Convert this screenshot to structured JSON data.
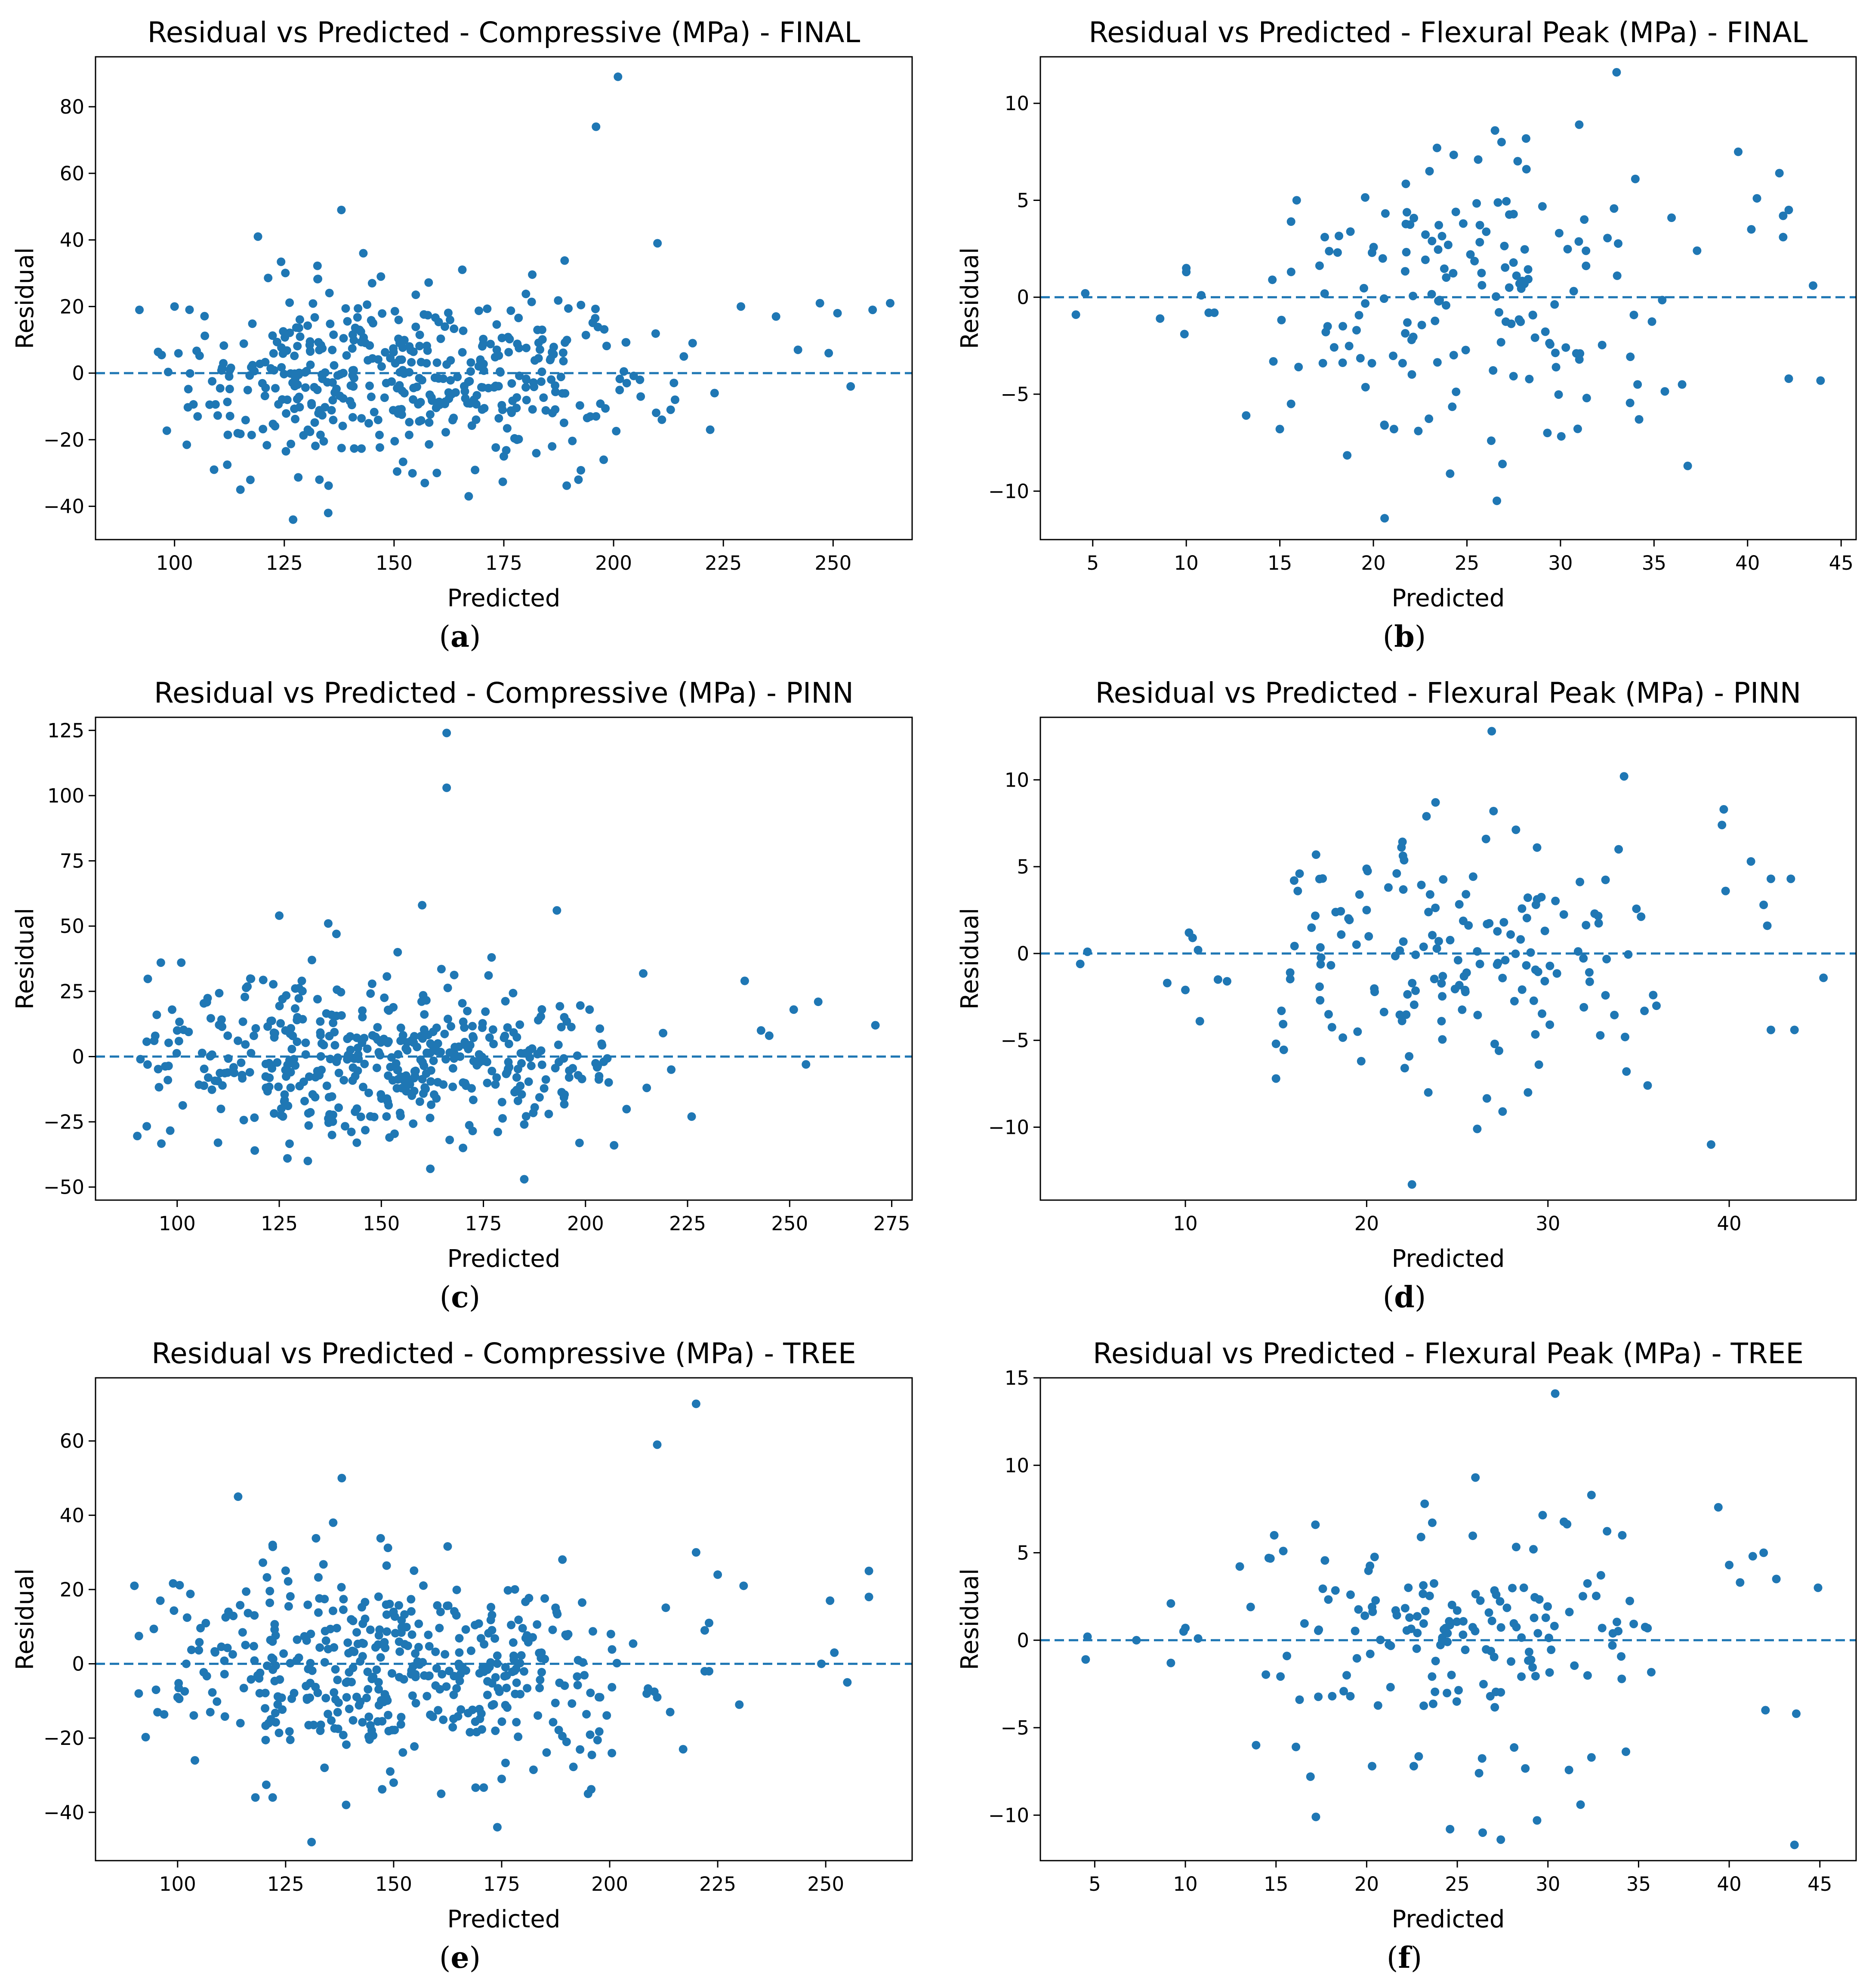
{
  "figure": {
    "panel_labels": [
      "a",
      "b",
      "c",
      "d",
      "e",
      "f"
    ],
    "colors": {
      "point": "#1f77b4",
      "zero_line": "#1f77b4",
      "axis": "#000000"
    }
  },
  "chart_data": [
    {
      "id": "a",
      "type": "scatter",
      "title": "Residual vs Predicted - Compressive (MPa) - FINAL",
      "xlabel": "Predicted",
      "ylabel": "Residual",
      "xlim": [
        82,
        268
      ],
      "ylim": [
        -50,
        95
      ],
      "xticks": [
        100,
        125,
        150,
        175,
        200,
        225,
        250
      ],
      "yticks": [
        -40,
        -20,
        0,
        20,
        40,
        60,
        80
      ],
      "reference_line": {
        "y": 0,
        "style": "dashed"
      },
      "seed": 11,
      "n_points": 470,
      "x_range_bulk": [
        92,
        215
      ],
      "x_center": 150,
      "x_spread": 30,
      "residual_spread": 13,
      "points": [
        [
          201,
          89
        ],
        [
          196,
          74
        ],
        [
          138,
          49
        ],
        [
          119,
          41
        ],
        [
          210,
          39
        ],
        [
          143,
          36
        ],
        [
          145,
          27
        ],
        [
          100,
          20
        ],
        [
          92,
          19
        ],
        [
          147,
          29
        ],
        [
          229,
          20
        ],
        [
          247,
          21
        ],
        [
          263,
          21
        ],
        [
          237,
          17
        ],
        [
          251,
          18
        ],
        [
          259,
          19
        ],
        [
          242,
          7
        ],
        [
          249,
          6
        ],
        [
          254,
          -4
        ],
        [
          223,
          -6
        ],
        [
          222,
          -17
        ],
        [
          214,
          -8
        ],
        [
          211,
          -14
        ],
        [
          213,
          -11
        ],
        [
          216,
          5
        ],
        [
          218,
          9
        ],
        [
          127,
          -44
        ],
        [
          135,
          -42
        ],
        [
          115,
          -35
        ],
        [
          109,
          -29
        ],
        [
          133,
          -32
        ],
        [
          167,
          -37
        ],
        [
          192,
          -32
        ],
        [
          157,
          -33
        ],
        [
          175,
          -25
        ],
        [
          186,
          -22
        ],
        [
          178,
          -20
        ],
        [
          196,
          -13
        ],
        [
          206,
          -2
        ],
        [
          203,
          -3
        ]
      ]
    },
    {
      "id": "b",
      "type": "scatter",
      "title": "Residual vs Predicted - Flexural Peak (MPa) - FINAL",
      "xlabel": "Predicted",
      "ylabel": "Residual",
      "xlim": [
        2.2,
        45.8
      ],
      "ylim": [
        -12.5,
        12.4
      ],
      "xticks": [
        5,
        10,
        15,
        20,
        25,
        30,
        35,
        40,
        45
      ],
      "yticks": [
        -10,
        -5,
        0,
        5,
        10
      ],
      "reference_line": {
        "y": 0,
        "style": "dashed"
      },
      "seed": 23,
      "n_points": 195,
      "x_range_bulk": [
        13,
        36
      ],
      "x_center": 25,
      "x_spread": 6,
      "residual_spread": 3.2,
      "points": [
        [
          4.1,
          -0.9
        ],
        [
          4.6,
          0.2
        ],
        [
          8.6,
          -1.1
        ],
        [
          9.9,
          -1.9
        ],
        [
          10.0,
          1.5
        ],
        [
          10.0,
          1.3
        ],
        [
          10.8,
          0.1
        ],
        [
          11.2,
          -0.8
        ],
        [
          11.5,
          -0.8
        ],
        [
          13.2,
          -6.1
        ],
        [
          33.0,
          11.6
        ],
        [
          31.0,
          8.9
        ],
        [
          26.5,
          8.6
        ],
        [
          23.4,
          7.7
        ],
        [
          25.6,
          7.1
        ],
        [
          23.0,
          6.5
        ],
        [
          39.5,
          7.5
        ],
        [
          41.7,
          6.4
        ],
        [
          34.0,
          6.1
        ],
        [
          37.3,
          2.4
        ],
        [
          40.5,
          5.1
        ],
        [
          42.2,
          4.5
        ],
        [
          41.9,
          4.2
        ],
        [
          41.9,
          3.1
        ],
        [
          40.2,
          3.5
        ],
        [
          43.5,
          0.6
        ],
        [
          43.9,
          -4.3
        ],
        [
          42.2,
          -4.2
        ],
        [
          36.8,
          -8.7
        ],
        [
          36.5,
          -4.5
        ],
        [
          20.6,
          -11.4
        ],
        [
          26.6,
          -10.5
        ],
        [
          24.1,
          -9.1
        ],
        [
          26.9,
          -8.6
        ],
        [
          26.3,
          -7.4
        ],
        [
          21.1,
          -6.8
        ],
        [
          22.4,
          -6.9
        ],
        [
          29.3,
          -7.0
        ],
        [
          31.4,
          -5.2
        ],
        [
          34.2,
          -6.3
        ],
        [
          15.0,
          -6.8
        ],
        [
          15.6,
          -5.5
        ],
        [
          16.0,
          -3.6
        ],
        [
          17.3,
          -3.4
        ],
        [
          15.9,
          5.0
        ],
        [
          15.6,
          3.9
        ],
        [
          17.4,
          3.1
        ],
        [
          20.5,
          2.0
        ],
        [
          19.1,
          -1.7
        ],
        [
          14.6,
          0.9
        ]
      ]
    },
    {
      "id": "c",
      "type": "scatter",
      "title": "Residual vs Predicted - Compressive (MPa) - PINN",
      "xlabel": "Predicted",
      "ylabel": "Residual",
      "xlim": [
        80,
        280
      ],
      "ylim": [
        -55,
        130
      ],
      "xticks": [
        100,
        125,
        150,
        175,
        200,
        225,
        250,
        275
      ],
      "yticks": [
        -50,
        -25,
        0,
        25,
        50,
        75,
        100,
        125
      ],
      "reference_line": {
        "y": 0,
        "style": "dashed"
      },
      "seed": 37,
      "n_points": 470,
      "x_range_bulk": [
        90,
        215
      ],
      "x_center": 150,
      "x_spread": 30,
      "residual_spread": 14,
      "points": [
        [
          166,
          124
        ],
        [
          166,
          103
        ],
        [
          160,
          58
        ],
        [
          193,
          56
        ],
        [
          125,
          54
        ],
        [
          137,
          51
        ],
        [
          139,
          47
        ],
        [
          154,
          40
        ],
        [
          177,
          38
        ],
        [
          133,
          37
        ],
        [
          96,
          36
        ],
        [
          101,
          36
        ],
        [
          239,
          29
        ],
        [
          271,
          12
        ],
        [
          257,
          21
        ],
        [
          251,
          18
        ],
        [
          245,
          8
        ],
        [
          243,
          10
        ],
        [
          254,
          -3
        ],
        [
          226,
          -23
        ],
        [
          221,
          -5
        ],
        [
          215,
          -12
        ],
        [
          219,
          9
        ],
        [
          207,
          -34
        ],
        [
          185,
          -47
        ],
        [
          162,
          -43
        ],
        [
          127,
          -39
        ],
        [
          132,
          -40
        ],
        [
          119,
          -36
        ],
        [
          110,
          -33
        ],
        [
          144,
          -33
        ],
        [
          170,
          -35
        ],
        [
          152,
          -31
        ],
        [
          191,
          -22
        ],
        [
          185,
          -26
        ],
        [
          196,
          -8
        ],
        [
          201,
          18
        ],
        [
          95,
          16
        ],
        [
          91,
          -1
        ],
        [
          100,
          10
        ]
      ]
    },
    {
      "id": "d",
      "type": "scatter",
      "title": "Residual vs Predicted - Flexural Peak (MPa) - PINN",
      "xlabel": "Predicted",
      "ylabel": "Residual",
      "xlim": [
        2.0,
        47.0
      ],
      "ylim": [
        -14.2,
        13.6
      ],
      "xticks": [
        10,
        20,
        30,
        40
      ],
      "yticks": [
        -10,
        -5,
        0,
        5,
        10
      ],
      "reference_line": {
        "y": 0,
        "style": "dashed"
      },
      "seed": 51,
      "n_points": 190,
      "x_range_bulk": [
        14,
        36
      ],
      "x_center": 25,
      "x_spread": 6,
      "residual_spread": 3.3,
      "points": [
        [
          4.2,
          -0.6
        ],
        [
          4.6,
          0.1
        ],
        [
          9.0,
          -1.7
        ],
        [
          10.0,
          -2.1
        ],
        [
          10.2,
          1.2
        ],
        [
          10.4,
          0.9
        ],
        [
          10.7,
          0.2
        ],
        [
          10.8,
          -3.9
        ],
        [
          11.8,
          -1.5
        ],
        [
          12.3,
          -1.6
        ],
        [
          26.9,
          12.8
        ],
        [
          34.2,
          10.2
        ],
        [
          23.8,
          8.7
        ],
        [
          23.3,
          7.9
        ],
        [
          27.0,
          8.2
        ],
        [
          39.7,
          8.3
        ],
        [
          39.6,
          7.4
        ],
        [
          41.2,
          5.3
        ],
        [
          33.9,
          6.0
        ],
        [
          29.4,
          6.1
        ],
        [
          42.3,
          4.3
        ],
        [
          41.9,
          2.8
        ],
        [
          43.4,
          4.3
        ],
        [
          42.1,
          1.6
        ],
        [
          39.8,
          3.6
        ],
        [
          45.2,
          -1.4
        ],
        [
          43.6,
          -4.4
        ],
        [
          42.3,
          -4.4
        ],
        [
          39.0,
          -11.0
        ],
        [
          35.5,
          -7.6
        ],
        [
          22.5,
          -13.3
        ],
        [
          26.1,
          -10.1
        ],
        [
          27.5,
          -9.1
        ],
        [
          23.4,
          -8.0
        ],
        [
          28.9,
          -8.0
        ],
        [
          29.5,
          -6.4
        ],
        [
          22.1,
          -6.6
        ],
        [
          19.7,
          -6.2
        ],
        [
          27.3,
          -5.6
        ],
        [
          15.0,
          -7.2
        ],
        [
          15.0,
          -5.2
        ],
        [
          15.3,
          -3.3
        ],
        [
          16.3,
          4.6
        ],
        [
          16.0,
          4.2
        ],
        [
          16.2,
          3.6
        ],
        [
          17.9,
          -3.5
        ],
        [
          20.0,
          2.5
        ],
        [
          21.2,
          3.8
        ],
        [
          23.5,
          3.4
        ],
        [
          19.5,
          -4.5
        ]
      ]
    },
    {
      "id": "e",
      "type": "scatter",
      "title": "Residual vs Predicted - Compressive (MPa) - TREE",
      "xlabel": "Predicted",
      "ylabel": "Residual",
      "xlim": [
        81,
        270
      ],
      "ylim": [
        -53,
        77
      ],
      "xticks": [
        100,
        125,
        150,
        175,
        200,
        225,
        250
      ],
      "yticks": [
        -40,
        -20,
        0,
        20,
        40,
        60
      ],
      "reference_line": {
        "y": 0,
        "style": "dashed"
      },
      "seed": 73,
      "n_points": 470,
      "x_range_bulk": [
        91,
        215
      ],
      "x_center": 150,
      "x_spread": 30,
      "residual_spread": 13,
      "points": [
        [
          220,
          70
        ],
        [
          211,
          59
        ],
        [
          138,
          50
        ],
        [
          114,
          45
        ],
        [
          136,
          38
        ],
        [
          122,
          32
        ],
        [
          220,
          30
        ],
        [
          260,
          25
        ],
        [
          260,
          18
        ],
        [
          251,
          17
        ],
        [
          252,
          3
        ],
        [
          255,
          -5
        ],
        [
          249,
          0
        ],
        [
          231,
          21
        ],
        [
          225,
          24
        ],
        [
          223,
          11
        ],
        [
          222,
          9
        ],
        [
          222,
          -2
        ],
        [
          223,
          -2
        ],
        [
          230,
          -11
        ],
        [
          217,
          -23
        ],
        [
          214,
          -13
        ],
        [
          211,
          -9
        ],
        [
          195,
          -35
        ],
        [
          174,
          -44
        ],
        [
          131,
          -48
        ],
        [
          139,
          -38
        ],
        [
          118,
          -36
        ],
        [
          122,
          -36
        ],
        [
          104,
          -26
        ],
        [
          134,
          -28
        ],
        [
          150,
          -32
        ],
        [
          161,
          -35
        ],
        [
          175,
          -31
        ],
        [
          90,
          21
        ],
        [
          96,
          17
        ],
        [
          95,
          -7
        ],
        [
          100,
          -9
        ],
        [
          91,
          -8
        ],
        [
          102,
          0
        ]
      ]
    },
    {
      "id": "f",
      "type": "scatter",
      "title": "Residual vs Predicted - Flexural Peak (MPa) - TREE",
      "xlabel": "Predicted",
      "ylabel": "Residual",
      "xlim": [
        2.0,
        47.0
      ],
      "ylim": [
        -12.6,
        15.0
      ],
      "xticks": [
        5,
        10,
        15,
        20,
        25,
        30,
        35,
        40,
        45
      ],
      "yticks": [
        -10,
        -5,
        0,
        5,
        10,
        15
      ],
      "reference_line": {
        "y": 0,
        "style": "dashed"
      },
      "seed": 97,
      "n_points": 190,
      "x_range_bulk": [
        13,
        36
      ],
      "x_center": 25,
      "x_spread": 6,
      "residual_spread": 3.3,
      "points": [
        [
          4.5,
          -1.1
        ],
        [
          4.6,
          0.2
        ],
        [
          7.3,
          0.0
        ],
        [
          9.2,
          2.1
        ],
        [
          9.2,
          -1.3
        ],
        [
          9.9,
          0.5
        ],
        [
          10.0,
          0.7
        ],
        [
          10.7,
          0.1
        ],
        [
          13.6,
          1.9
        ],
        [
          13.9,
          -6.0
        ],
        [
          30.4,
          14.1
        ],
        [
          26.0,
          9.3
        ],
        [
          32.4,
          8.3
        ],
        [
          23.2,
          7.8
        ],
        [
          39.4,
          7.6
        ],
        [
          29.2,
          5.2
        ],
        [
          34.1,
          6.0
        ],
        [
          14.9,
          6.0
        ],
        [
          15.4,
          5.1
        ],
        [
          14.6,
          4.7
        ],
        [
          40.0,
          4.3
        ],
        [
          41.3,
          4.8
        ],
        [
          41.9,
          5.0
        ],
        [
          40.6,
          3.3
        ],
        [
          42.6,
          3.5
        ],
        [
          44.9,
          3.0
        ],
        [
          43.7,
          -4.2
        ],
        [
          42.0,
          -4.0
        ],
        [
          43.6,
          -11.7
        ],
        [
          31.8,
          -9.4
        ],
        [
          26.4,
          -11.0
        ],
        [
          27.4,
          -11.4
        ],
        [
          24.6,
          -10.8
        ],
        [
          29.4,
          -10.3
        ],
        [
          17.2,
          -10.1
        ],
        [
          16.9,
          -7.8
        ],
        [
          26.2,
          -7.6
        ],
        [
          20.3,
          -7.2
        ],
        [
          22.6,
          -7.2
        ],
        [
          32.4,
          -6.7
        ],
        [
          16.1,
          -6.1
        ],
        [
          16.3,
          -3.4
        ],
        [
          18.1,
          -3.2
        ],
        [
          19.1,
          -3.2
        ],
        [
          15.6,
          -0.9
        ],
        [
          19.9,
          1.4
        ],
        [
          20.3,
          1.9
        ],
        [
          21.6,
          1.7
        ],
        [
          22.3,
          3.0
        ],
        [
          23.0,
          5.9
        ]
      ]
    }
  ]
}
